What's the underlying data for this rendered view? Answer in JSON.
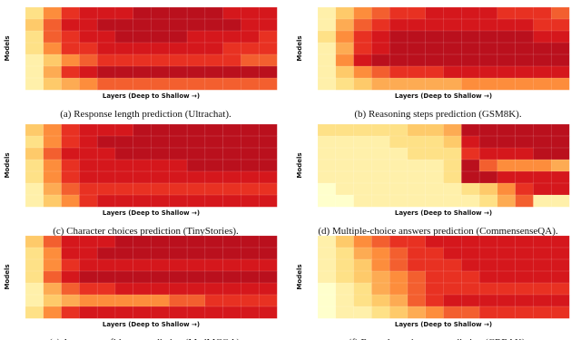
{
  "chart_data": [
    {
      "type": "heatmap",
      "caption": "(a) Response length prediction (Ultrachat).",
      "xlabel": "Layers (Deep to Shallow →)",
      "ylabel": "Models",
      "zlim": [
        0,
        1
      ],
      "colors": [
        "#ffffcc",
        "#fed976",
        "#fd8d3c",
        "#e31a1c",
        "#9e0a1e"
      ],
      "values": [
        [
          0.2,
          0.5,
          0.7,
          0.8,
          0.8,
          0.8,
          0.9,
          0.9,
          0.9,
          0.9,
          0.9,
          0.8,
          0.8,
          0.8
        ],
        [
          0.3,
          0.6,
          0.8,
          0.8,
          0.9,
          0.9,
          0.9,
          0.9,
          0.9,
          0.9,
          0.9,
          0.9,
          0.8,
          0.8
        ],
        [
          0.2,
          0.6,
          0.7,
          0.8,
          0.8,
          0.9,
          0.9,
          0.9,
          0.9,
          0.8,
          0.8,
          0.8,
          0.8,
          0.7
        ],
        [
          0.2,
          0.5,
          0.7,
          0.7,
          0.8,
          0.8,
          0.8,
          0.8,
          0.8,
          0.8,
          0.8,
          0.7,
          0.7,
          0.7
        ],
        [
          0.1,
          0.3,
          0.5,
          0.6,
          0.7,
          0.7,
          0.7,
          0.7,
          0.7,
          0.7,
          0.7,
          0.7,
          0.6,
          0.6
        ],
        [
          0.1,
          0.4,
          0.7,
          0.8,
          0.9,
          0.9,
          0.9,
          0.9,
          0.9,
          0.9,
          0.9,
          0.9,
          0.9,
          0.9
        ],
        [
          0.1,
          0.3,
          0.4,
          0.5,
          0.6,
          0.6,
          0.6,
          0.6,
          0.6,
          0.6,
          0.6,
          0.6,
          0.6,
          0.6
        ]
      ]
    },
    {
      "type": "heatmap",
      "caption": "(b) Reasoning steps prediction (GSM8K).",
      "xlabel": "Layers (Deep to Shallow →)",
      "ylabel": "Models",
      "zlim": [
        0,
        1
      ],
      "colors": [
        "#ffffcc",
        "#fed976",
        "#fd8d3c",
        "#e31a1c",
        "#9e0a1e"
      ],
      "values": [
        [
          0.1,
          0.3,
          0.5,
          0.6,
          0.7,
          0.7,
          0.8,
          0.8,
          0.8,
          0.8,
          0.7,
          0.7,
          0.7,
          0.6
        ],
        [
          0.1,
          0.4,
          0.6,
          0.7,
          0.8,
          0.8,
          0.8,
          0.8,
          0.8,
          0.8,
          0.8,
          0.8,
          0.7,
          0.7
        ],
        [
          0.2,
          0.5,
          0.7,
          0.8,
          0.9,
          0.9,
          0.9,
          0.9,
          0.9,
          0.9,
          0.9,
          0.9,
          0.8,
          0.8
        ],
        [
          0.1,
          0.4,
          0.7,
          0.8,
          0.9,
          0.9,
          0.9,
          0.9,
          0.9,
          0.9,
          0.9,
          0.9,
          0.9,
          0.9
        ],
        [
          0.1,
          0.5,
          0.8,
          0.9,
          0.9,
          0.9,
          0.9,
          0.9,
          0.9,
          0.9,
          0.9,
          0.9,
          0.9,
          0.9
        ],
        [
          0.1,
          0.3,
          0.5,
          0.6,
          0.7,
          0.7,
          0.7,
          0.8,
          0.8,
          0.8,
          0.8,
          0.8,
          0.8,
          0.8
        ],
        [
          0.1,
          0.2,
          0.3,
          0.4,
          0.4,
          0.4,
          0.4,
          0.4,
          0.5,
          0.5,
          0.5,
          0.5,
          0.5,
          0.5
        ]
      ]
    },
    {
      "type": "heatmap",
      "caption": "(c) Character choices prediction (TinyStories).",
      "xlabel": "Layers (Deep to Shallow →)",
      "ylabel": "Models",
      "zlim": [
        0,
        1
      ],
      "colors": [
        "#ffffcc",
        "#fed976",
        "#fd8d3c",
        "#e31a1c",
        "#9e0a1e"
      ],
      "values": [
        [
          0.3,
          0.5,
          0.7,
          0.8,
          0.8,
          0.8,
          0.9,
          0.9,
          0.9,
          0.9,
          0.9,
          0.9,
          0.9,
          0.9
        ],
        [
          0.2,
          0.5,
          0.7,
          0.8,
          0.9,
          0.9,
          0.9,
          0.9,
          0.9,
          0.9,
          0.9,
          0.9,
          0.9,
          0.9
        ],
        [
          0.3,
          0.6,
          0.8,
          0.8,
          0.8,
          0.9,
          0.9,
          0.9,
          0.9,
          0.9,
          0.9,
          0.9,
          0.9,
          0.9
        ],
        [
          0.2,
          0.5,
          0.7,
          0.8,
          0.8,
          0.8,
          0.8,
          0.8,
          0.8,
          0.9,
          0.9,
          0.9,
          0.9,
          0.9
        ],
        [
          0.2,
          0.5,
          0.7,
          0.8,
          0.8,
          0.8,
          0.8,
          0.8,
          0.8,
          0.8,
          0.8,
          0.8,
          0.8,
          0.8
        ],
        [
          0.1,
          0.4,
          0.6,
          0.7,
          0.7,
          0.7,
          0.7,
          0.7,
          0.7,
          0.7,
          0.7,
          0.7,
          0.7,
          0.7
        ],
        [
          0.1,
          0.3,
          0.5,
          0.7,
          0.8,
          0.8,
          0.8,
          0.8,
          0.8,
          0.8,
          0.8,
          0.8,
          0.8,
          0.8
        ]
      ]
    },
    {
      "type": "heatmap",
      "caption": "(d) Multiple-choice answers prediction (CommensenseQA).",
      "xlabel": "Layers (Deep to Shallow →)",
      "ylabel": "Models",
      "zlim": [
        0,
        1
      ],
      "colors": [
        "#ffffcc",
        "#fed976",
        "#fd8d3c",
        "#e31a1c",
        "#9e0a1e"
      ],
      "values": [
        [
          0.2,
          0.2,
          0.2,
          0.2,
          0.2,
          0.3,
          0.3,
          0.4,
          0.9,
          0.9,
          0.9,
          0.9,
          0.9,
          0.9
        ],
        [
          0.1,
          0.1,
          0.1,
          0.1,
          0.2,
          0.2,
          0.2,
          0.3,
          0.8,
          0.9,
          0.9,
          0.9,
          0.9,
          0.9
        ],
        [
          0.1,
          0.1,
          0.1,
          0.1,
          0.1,
          0.2,
          0.2,
          0.2,
          0.7,
          0.8,
          0.8,
          0.8,
          0.9,
          0.9
        ],
        [
          0.1,
          0.1,
          0.1,
          0.1,
          0.1,
          0.1,
          0.1,
          0.2,
          0.9,
          0.6,
          0.5,
          0.5,
          0.5,
          0.4
        ],
        [
          0.1,
          0.1,
          0.1,
          0.1,
          0.1,
          0.1,
          0.1,
          0.2,
          0.9,
          0.9,
          0.8,
          0.8,
          0.8,
          0.8
        ],
        [
          0,
          0.1,
          0.1,
          0.1,
          0.1,
          0.1,
          0.1,
          0.1,
          0.2,
          0.3,
          0.5,
          0.7,
          0.8,
          0.8
        ],
        [
          0,
          0,
          0.1,
          0.1,
          0.1,
          0.1,
          0.1,
          0.1,
          0.1,
          0.2,
          0.4,
          0.6,
          0.1,
          0.1
        ]
      ]
    },
    {
      "type": "heatmap",
      "caption": "(e) Answer confidence prediction (MedMCQA).",
      "xlabel": "Layers (Deep to Shallow →)",
      "ylabel": "Models",
      "zlim": [
        0,
        1
      ],
      "colors": [
        "#ffffcc",
        "#fed976",
        "#fd8d3c",
        "#e31a1c",
        "#9e0a1e"
      ],
      "values": [
        [
          0.3,
          0.6,
          0.8,
          0.8,
          0.8,
          0.9,
          0.9,
          0.9,
          0.9,
          0.9,
          0.9,
          0.9,
          0.9,
          0.9
        ],
        [
          0.2,
          0.5,
          0.8,
          0.8,
          0.9,
          0.9,
          0.9,
          0.9,
          0.9,
          0.9,
          0.9,
          0.9,
          0.9,
          0.9
        ],
        [
          0.2,
          0.5,
          0.7,
          0.8,
          0.8,
          0.8,
          0.8,
          0.8,
          0.8,
          0.8,
          0.8,
          0.8,
          0.8,
          0.8
        ],
        [
          0.2,
          0.6,
          0.8,
          0.9,
          0.9,
          0.9,
          0.9,
          0.9,
          0.9,
          0.9,
          0.9,
          0.9,
          0.9,
          0.9
        ],
        [
          0.1,
          0.4,
          0.6,
          0.7,
          0.7,
          0.8,
          0.8,
          0.8,
          0.8,
          0.8,
          0.8,
          0.8,
          0.8,
          0.8
        ],
        [
          0.1,
          0.3,
          0.4,
          0.5,
          0.5,
          0.5,
          0.5,
          0.5,
          0.6,
          0.6,
          0.7,
          0.7,
          0.7,
          0.7
        ],
        [
          0.2,
          0.5,
          0.7,
          0.8,
          0.8,
          0.8,
          0.8,
          0.8,
          0.8,
          0.8,
          0.8,
          0.8,
          0.8,
          0.8
        ]
      ]
    },
    {
      "type": "heatmap",
      "caption": "(f) Factual consistency prediction (CREAK).",
      "xlabel": "Layers (Deep to Shallow →)",
      "ylabel": "Models",
      "zlim": [
        0,
        1
      ],
      "colors": [
        "#ffffcc",
        "#fed976",
        "#fd8d3c",
        "#e31a1c",
        "#9e0a1e"
      ],
      "values": [
        [
          0.1,
          0.3,
          0.5,
          0.6,
          0.7,
          0.7,
          0.8,
          0.8,
          0.8,
          0.8,
          0.8,
          0.8,
          0.8,
          0.8
        ],
        [
          0.1,
          0.2,
          0.4,
          0.5,
          0.6,
          0.7,
          0.7,
          0.8,
          0.8,
          0.8,
          0.8,
          0.8,
          0.8,
          0.8
        ],
        [
          0.1,
          0.2,
          0.3,
          0.5,
          0.6,
          0.7,
          0.7,
          0.7,
          0.8,
          0.8,
          0.8,
          0.8,
          0.8,
          0.8
        ],
        [
          0.1,
          0.2,
          0.3,
          0.4,
          0.5,
          0.6,
          0.7,
          0.7,
          0.7,
          0.8,
          0.8,
          0.8,
          0.8,
          0.8
        ],
        [
          0,
          0.1,
          0.2,
          0.4,
          0.5,
          0.6,
          0.7,
          0.7,
          0.7,
          0.7,
          0.7,
          0.7,
          0.7,
          0.7
        ],
        [
          0,
          0.1,
          0.2,
          0.3,
          0.4,
          0.6,
          0.7,
          0.8,
          0.8,
          0.8,
          0.8,
          0.8,
          0.8,
          0.8
        ],
        [
          0,
          0.1,
          0.1,
          0.2,
          0.3,
          0.4,
          0.5,
          0.6,
          0.6,
          0.7,
          0.7,
          0.7,
          0.7,
          0.7
        ]
      ]
    }
  ]
}
